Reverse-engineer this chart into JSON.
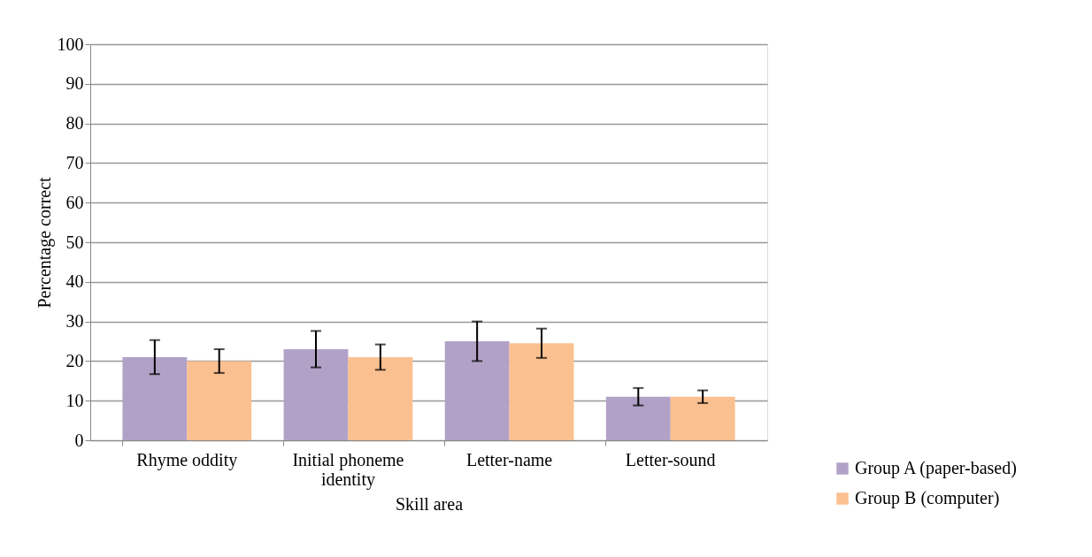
{
  "chart_data": {
    "type": "bar",
    "xlabel": "Skill area",
    "ylabel": "Percentage correct",
    "categories": [
      "Rhyme oddity",
      "Initial phoneme identity",
      "Letter-name",
      "Letter-sound"
    ],
    "series": [
      {
        "name": "Group A (paper-based)",
        "color": "#b2a1c7",
        "values": [
          21,
          23,
          25,
          11
        ],
        "errors": [
          4.3,
          4.6,
          5,
          2.2
        ]
      },
      {
        "name": "Group B (computer)",
        "color": "#fac090",
        "values": [
          20,
          21,
          24.5,
          11
        ],
        "errors": [
          3,
          3.2,
          3.7,
          1.6
        ]
      }
    ],
    "ylim": [
      0,
      100
    ],
    "yticks": [
      0,
      10,
      20,
      30,
      40,
      50,
      60,
      70,
      80,
      90,
      100
    ],
    "grid": "y",
    "legend": "bottom right"
  }
}
